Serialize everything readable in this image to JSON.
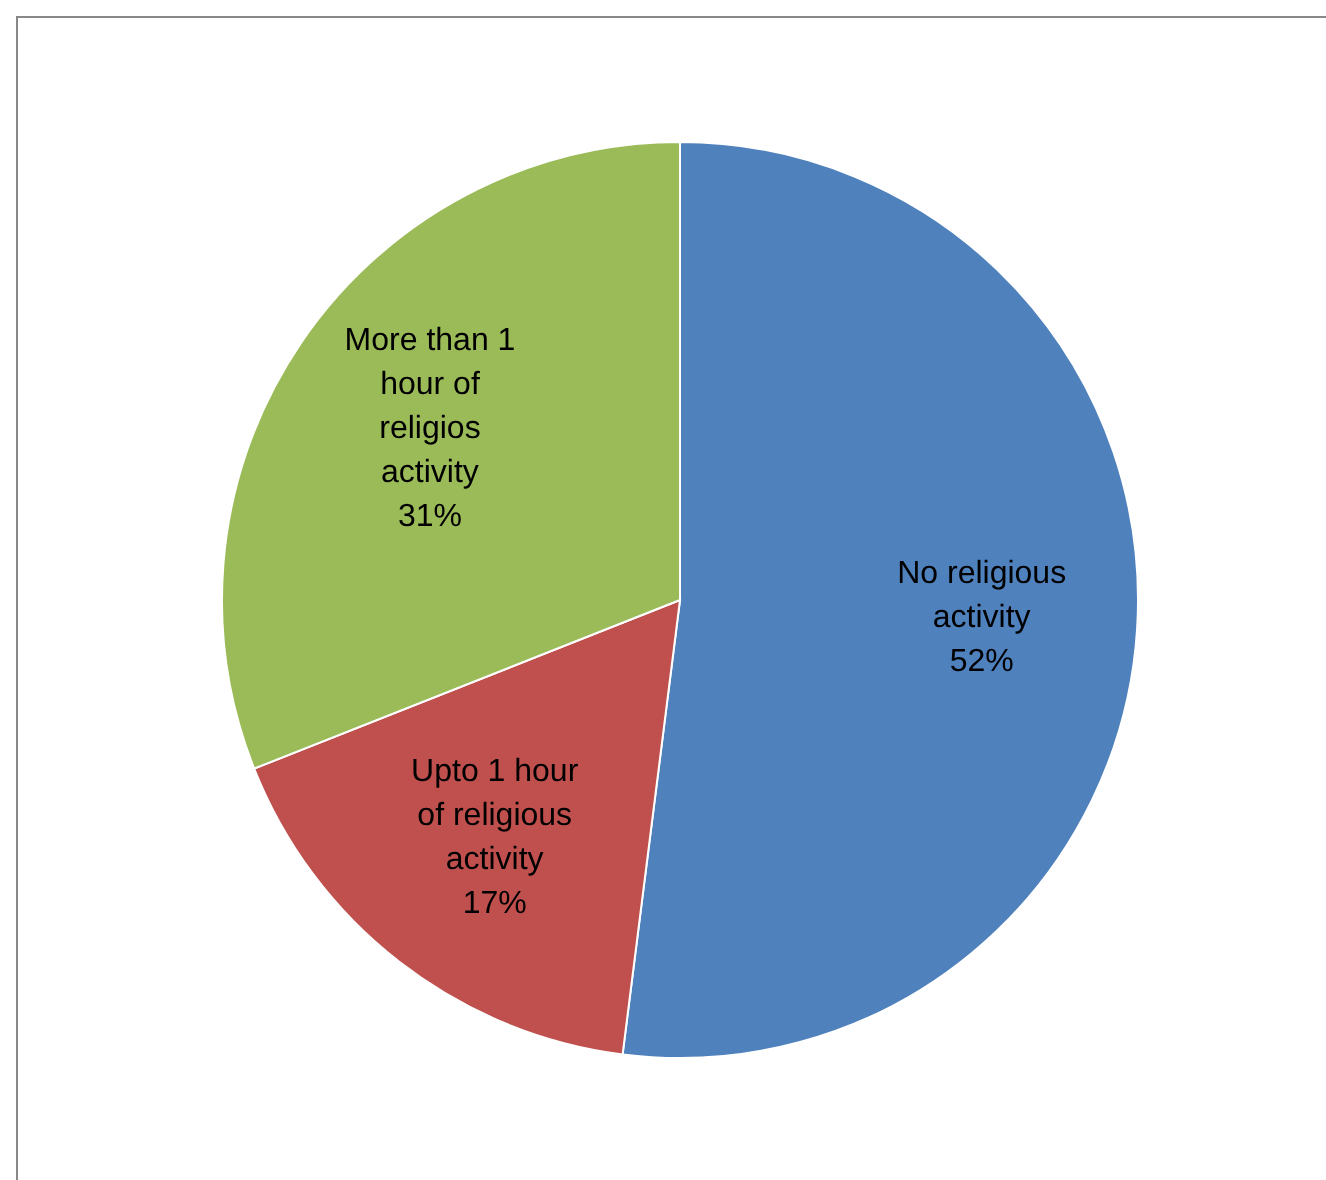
{
  "chart_data": {
    "type": "pie",
    "categories": [
      "No religious activity",
      "Upto 1 hour of religious activity",
      "More than 1 hour of religios activity"
    ],
    "values": [
      52,
      17,
      31
    ],
    "colors": [
      "#4f81bd",
      "#c0504d",
      "#9bbb59"
    ],
    "value_labels": [
      "52%",
      "17%",
      "31%"
    ]
  }
}
